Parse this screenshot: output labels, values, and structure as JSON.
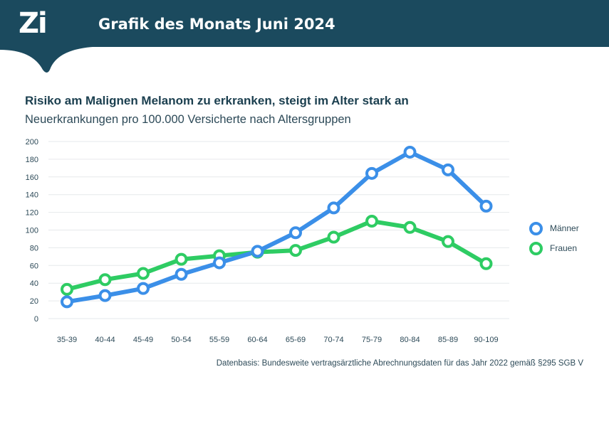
{
  "header": {
    "logo_text": "Zi",
    "title": "Grafik des Monats Juni 2024"
  },
  "chart_title": "Risiko am Malignen Melanom zu erkranken, steigt im Alter stark an",
  "chart_subtitle": "Neuerkrankungen pro 100.000 Versicherte nach Altersgruppen",
  "source": "Datenbasis: Bundesweite vertragsärztliche Abrechnungsdaten für das Jahr 2022 gemäß §295 SGB V",
  "colors": {
    "header_bg": "#1b4a5e",
    "maenner": "#3b8fe8",
    "frauen": "#2ecc63",
    "grid": "#e6e9ec",
    "text": "#2d4a58"
  },
  "chart_data": {
    "type": "line",
    "title": "Risiko am Malignen Melanom zu erkranken, steigt im Alter stark an",
    "subtitle": "Neuerkrankungen pro 100.000 Versicherte nach Altersgruppen",
    "xlabel": "",
    "ylabel": "",
    "ylim": [
      0,
      200
    ],
    "yticks": [
      "0",
      "20",
      "40",
      "60",
      "80",
      "100",
      "120",
      "140",
      "160",
      "180",
      "200"
    ],
    "grid": true,
    "legend_position": "right",
    "categories": [
      "35-39",
      "40-44",
      "45-49",
      "50-54",
      "55-59",
      "60-64",
      "65-69",
      "70-74",
      "75-79",
      "80-84",
      "85-89",
      "90-109"
    ],
    "series": [
      {
        "name": "Männer",
        "color": "#3b8fe8",
        "values": [
          19,
          26,
          34,
          50,
          63,
          76,
          97,
          125,
          164,
          188,
          168,
          127
        ]
      },
      {
        "name": "Frauen",
        "color": "#2ecc63",
        "values": [
          33,
          44,
          51,
          67,
          71,
          75,
          77,
          92,
          110,
          103,
          87,
          62
        ]
      }
    ]
  }
}
